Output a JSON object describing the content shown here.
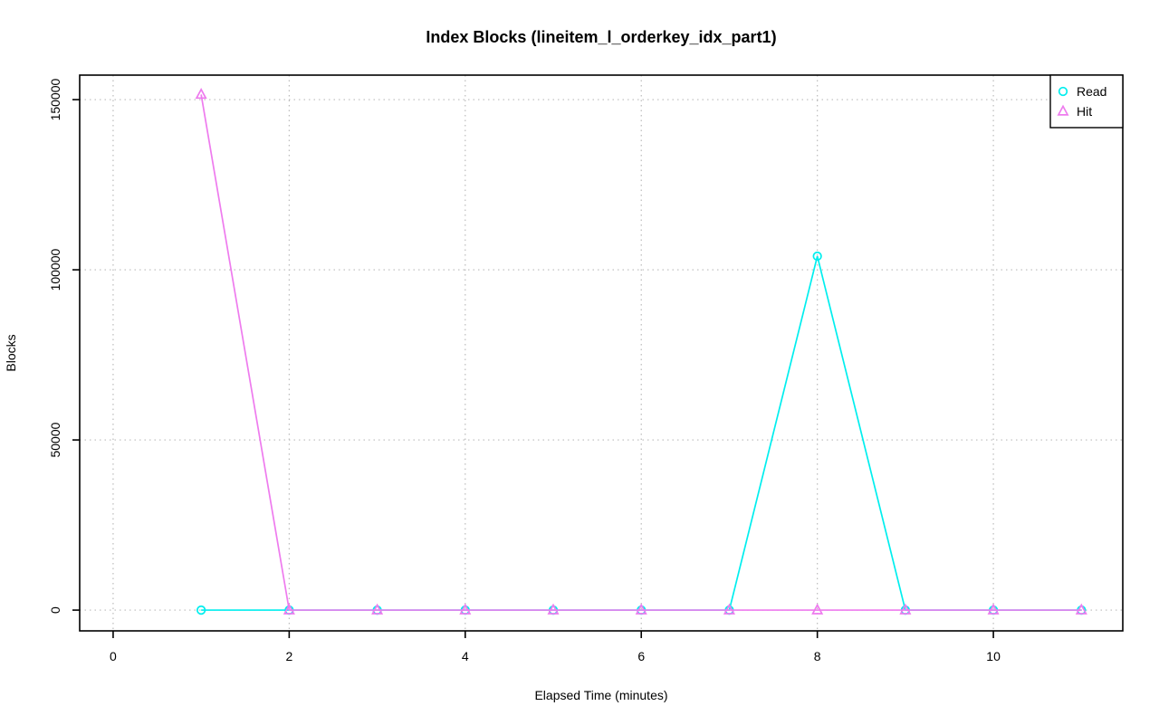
{
  "window": {
    "background_color": "#ffffff"
  },
  "chart_data": {
    "type": "line",
    "title": "Index Blocks (lineitem_l_orderkey_idx_part1)",
    "xlabel": "Elapsed Time (minutes)",
    "ylabel": "Blocks",
    "x": [
      1,
      2,
      3,
      4,
      5,
      6,
      7,
      8,
      9,
      10,
      11
    ],
    "series": [
      {
        "name": "Read",
        "marker": "circle",
        "color": "#00EEEE",
        "values": [
          0,
          0,
          0,
          0,
          0,
          0,
          0,
          104000,
          0,
          0,
          0
        ]
      },
      {
        "name": "Hit",
        "marker": "triangle",
        "color": "#EE7BEE",
        "values": [
          151500,
          0,
          0,
          0,
          0,
          0,
          0,
          0,
          0,
          0,
          0
        ]
      }
    ],
    "xticks": [
      0,
      2,
      4,
      6,
      8,
      10
    ],
    "xtick_labels": [
      "0",
      "2",
      "4",
      "6",
      "8",
      "10"
    ],
    "yticks": [
      0,
      50000,
      100000,
      150000
    ],
    "ytick_labels": [
      "0",
      "50000",
      "100000",
      "150000"
    ],
    "xlim": [
      -0.38,
      11.47
    ],
    "ylim": [
      -6100,
      157200
    ],
    "grid": true,
    "grid_style": "dotted",
    "grid_color": "#bbbbbb",
    "axis_color": "#000000",
    "legend": {
      "position": "top-right",
      "entries": [
        "Read",
        "Hit"
      ]
    }
  }
}
